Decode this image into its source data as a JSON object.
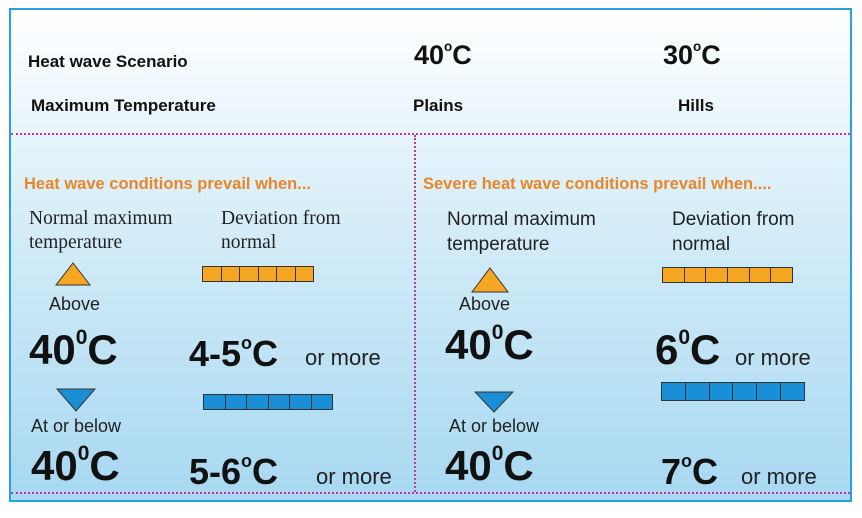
{
  "header": {
    "scenario_label": "Heat wave Scenario",
    "max_temp_label": "Maximum Temperature",
    "plains_temp": "40",
    "hills_temp": "30",
    "deg_symbol": "o",
    "unit": "C",
    "plains_label": "Plains",
    "hills_label": "Hills"
  },
  "left_panel": {
    "title": "Heat wave conditions prevail when...",
    "normal_max_line1": "Normal maximum",
    "normal_max_line2": "temperature",
    "deviation_line1": "Deviation from",
    "deviation_line2": "normal",
    "above_label": "Above",
    "above_temp": "40",
    "above_deviation": "4-5",
    "below_label": "At or below",
    "below_temp": "40",
    "below_deviation": "5-6",
    "zero_sup": "0",
    "o_sup": "o",
    "unit": "C",
    "or_more": "or more"
  },
  "right_panel": {
    "title": "Severe heat wave conditions prevail when....",
    "normal_max_line1": "Normal maximum",
    "normal_max_line2": "temperature",
    "deviation_line1": "Deviation from",
    "deviation_line2": "normal",
    "above_label": "Above",
    "above_temp": "40",
    "above_deviation": "6",
    "below_label": "At or below",
    "below_temp": "40",
    "below_deviation": "7",
    "zero_sup": "0",
    "o_sup": "o",
    "unit": "C",
    "or_more": "or more"
  },
  "colors": {
    "orange": "#f5a623",
    "blue": "#1a8fd6",
    "title_orange": "#e9862a",
    "border": "#25a3df",
    "divider": "#c0399a"
  },
  "icons": {
    "up": "triangle-up-icon",
    "down": "triangle-down-icon",
    "bar": "segmented-bar-icon"
  }
}
